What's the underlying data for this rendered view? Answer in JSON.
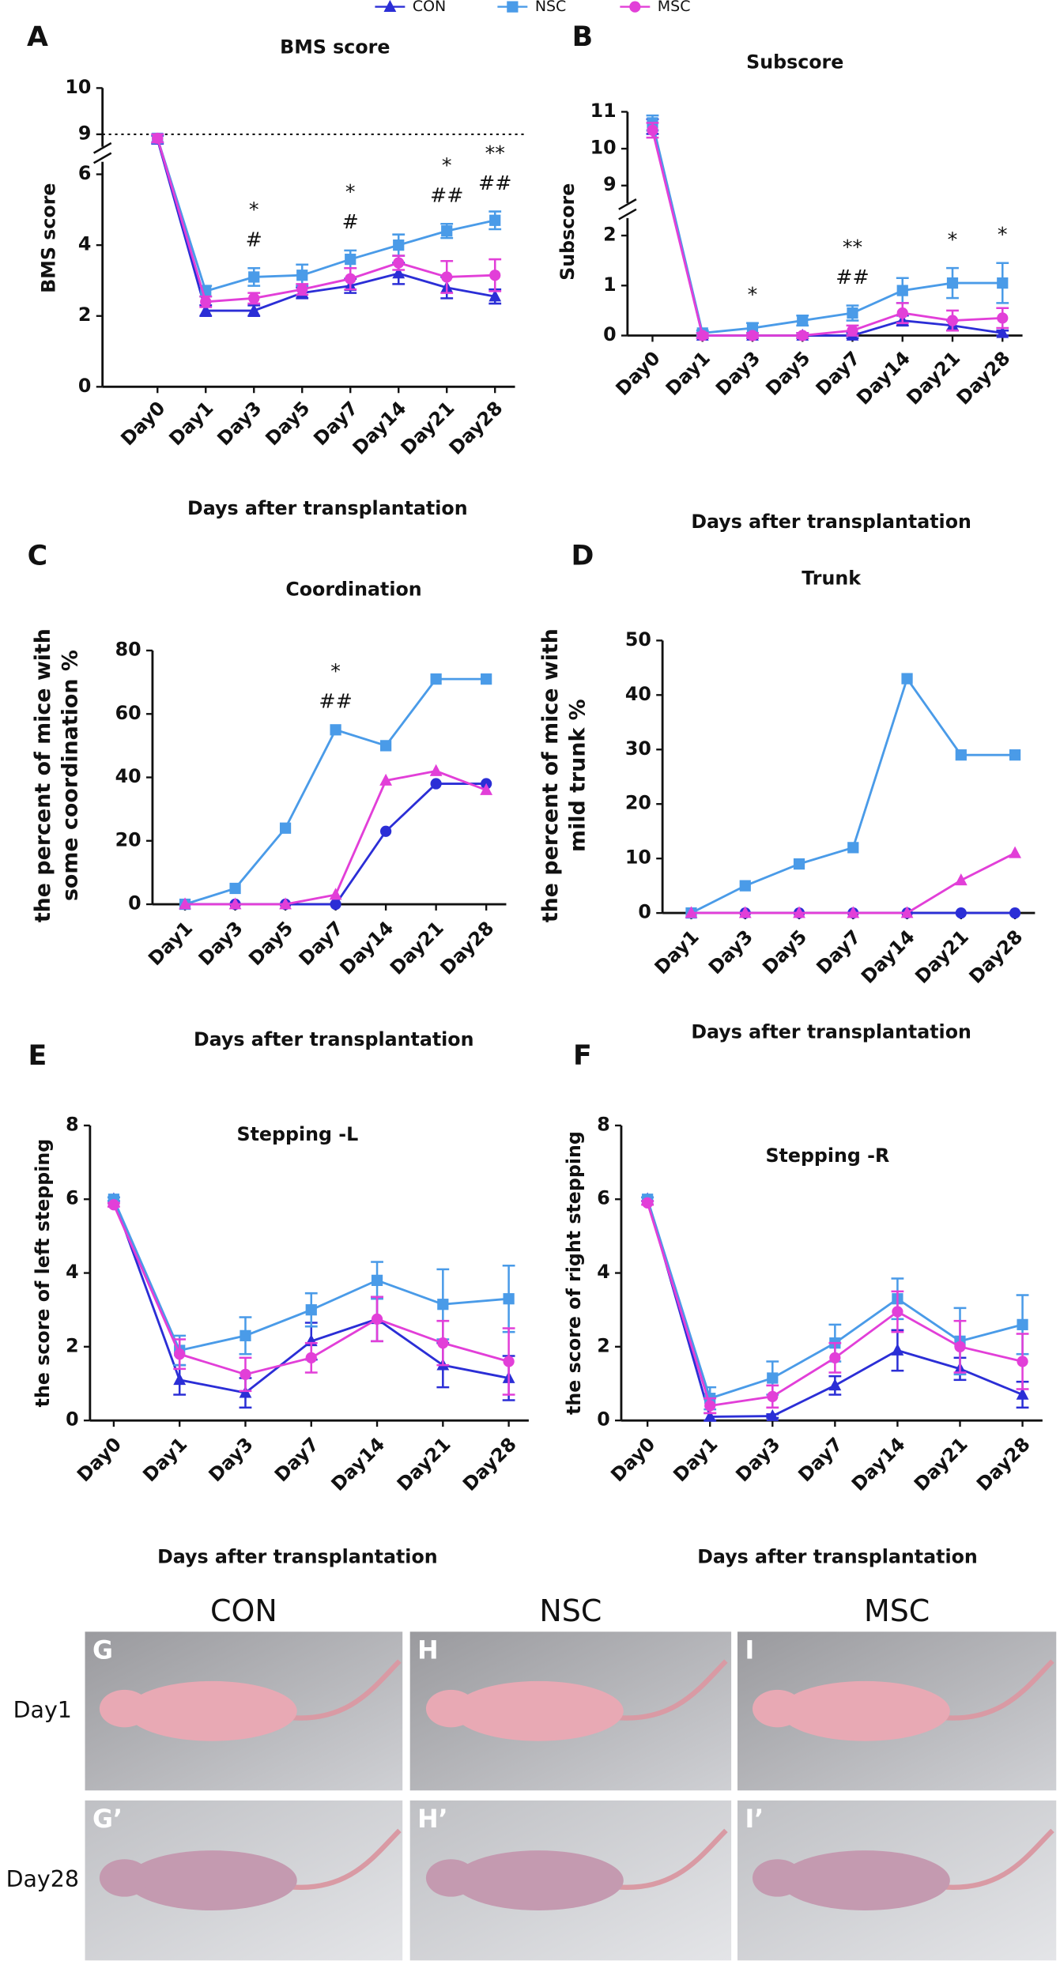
{
  "chart_data": [
    {
      "type": "line",
      "panel": "A",
      "title": "BMS score",
      "xlabel": "Days after transplantation",
      "ylabel": "BMS score",
      "legend": "top",
      "categories": [
        "Day0",
        "Day1",
        "Day3",
        "Day5",
        "Day7",
        "Day14",
        "Day21",
        "Day28"
      ],
      "ylim": [
        0,
        10
      ],
      "ybreak": [
        6,
        9
      ],
      "yticks": [
        0,
        2,
        4,
        6,
        9,
        10
      ],
      "reference_line": 9,
      "series": [
        {
          "name": "CON",
          "color": "#2b2ed6",
          "marker": "triangle",
          "values": [
            8.6,
            2.15,
            2.15,
            2.65,
            2.85,
            3.2,
            2.8,
            2.55
          ],
          "errors": [
            0.3,
            0.15,
            0.15,
            0.15,
            0.2,
            0.3,
            0.3,
            0.2
          ]
        },
        {
          "name": "NSC",
          "color": "#4a9be8",
          "marker": "square",
          "values": [
            8.7,
            2.7,
            3.1,
            3.15,
            3.6,
            4.0,
            4.4,
            4.7
          ],
          "errors": [
            0.3,
            0.15,
            0.25,
            0.3,
            0.25,
            0.3,
            0.2,
            0.25
          ]
        },
        {
          "name": "MSC",
          "color": "#e23fd8",
          "marker": "circle",
          "values": [
            8.7,
            2.4,
            2.5,
            2.75,
            3.05,
            3.5,
            3.1,
            3.15
          ],
          "errors": [
            0.3,
            0.15,
            0.15,
            0.15,
            0.3,
            0.2,
            0.45,
            0.45
          ]
        }
      ],
      "annotations": [
        {
          "x": "Day3",
          "lines": [
            "*",
            "#"
          ]
        },
        {
          "x": "Day7",
          "lines": [
            "*",
            "#"
          ]
        },
        {
          "x": "Day21",
          "lines": [
            "*",
            "##"
          ]
        },
        {
          "x": "Day28",
          "lines": [
            "**",
            "##"
          ]
        }
      ]
    },
    {
      "type": "line",
      "panel": "B",
      "title": "Subscore",
      "xlabel": "Days after transplantation",
      "ylabel": "Subscore",
      "categories": [
        "Day0",
        "Day1",
        "Day3",
        "Day5",
        "Day7",
        "Day14",
        "Day21",
        "Day28"
      ],
      "ylim": [
        0,
        11
      ],
      "ybreak": [
        2,
        9
      ],
      "yticks": [
        0,
        1,
        2,
        9,
        10,
        11
      ],
      "series": [
        {
          "name": "CON",
          "color": "#2b2ed6",
          "marker": "triangle",
          "values": [
            10.6,
            0,
            0,
            0,
            0,
            0.3,
            0.2,
            0.05
          ],
          "errors": [
            0.2,
            0.05,
            0.05,
            0.05,
            0.05,
            0.1,
            0.1,
            0.05
          ]
        },
        {
          "name": "NSC",
          "color": "#4a9be8",
          "marker": "square",
          "values": [
            10.7,
            0.05,
            0.15,
            0.3,
            0.45,
            0.9,
            1.05,
            1.05
          ],
          "errors": [
            0.2,
            0.05,
            0.1,
            0.1,
            0.15,
            0.25,
            0.3,
            0.4
          ]
        },
        {
          "name": "MSC",
          "color": "#e23fd8",
          "marker": "circle",
          "values": [
            10.5,
            0,
            0,
            0,
            0.1,
            0.45,
            0.3,
            0.35
          ],
          "errors": [
            0.2,
            0.05,
            0.05,
            0.05,
            0.1,
            0.2,
            0.2,
            0.2
          ]
        }
      ],
      "annotations": [
        {
          "x": "Day3",
          "lines": [
            "*"
          ]
        },
        {
          "x": "Day7",
          "lines": [
            "**",
            "##"
          ]
        },
        {
          "x": "Day21",
          "lines": [
            "*"
          ]
        },
        {
          "x": "Day28",
          "lines": [
            "*"
          ]
        }
      ]
    },
    {
      "type": "line",
      "panel": "C",
      "title": "Coordination",
      "xlabel": "Days after transplantation",
      "ylabel": [
        "the percent of mice with",
        "some coordination %"
      ],
      "categories": [
        "Day1",
        "Day3",
        "Day5",
        "Day7",
        "Day14",
        "Day21",
        "Day28"
      ],
      "ylim": [
        0,
        80
      ],
      "yticks": [
        0,
        20,
        40,
        60,
        80
      ],
      "series": [
        {
          "name": "CON",
          "color": "#2b2ed6",
          "marker": "circle",
          "values": [
            0,
            0,
            0,
            0,
            23,
            38,
            38
          ]
        },
        {
          "name": "NSC",
          "color": "#4a9be8",
          "marker": "square",
          "values": [
            0,
            5,
            24,
            55,
            50,
            71,
            71
          ]
        },
        {
          "name": "MSC",
          "color": "#e23fd8",
          "marker": "triangle",
          "values": [
            0,
            0,
            0,
            3,
            39,
            42,
            36
          ]
        }
      ],
      "annotations": [
        {
          "x": "Day7",
          "lines": [
            "*",
            "##"
          ]
        }
      ]
    },
    {
      "type": "line",
      "panel": "D",
      "title": "Trunk",
      "xlabel": "Days after transplantation",
      "ylabel": [
        "the percent of mice with",
        "mild trunk %"
      ],
      "categories": [
        "Day1",
        "Day3",
        "Day5",
        "Day7",
        "Day14",
        "Day21",
        "Day28"
      ],
      "ylim": [
        0,
        50
      ],
      "yticks": [
        0,
        10,
        20,
        30,
        40,
        50
      ],
      "series": [
        {
          "name": "CON",
          "color": "#2b2ed6",
          "marker": "circle",
          "values": [
            0,
            0,
            0,
            0,
            0,
            0,
            0
          ]
        },
        {
          "name": "NSC",
          "color": "#4a9be8",
          "marker": "square",
          "values": [
            0,
            5,
            9,
            12,
            43,
            29,
            29
          ]
        },
        {
          "name": "MSC",
          "color": "#e23fd8",
          "marker": "triangle",
          "values": [
            0,
            0,
            0,
            0,
            0,
            6,
            11
          ]
        }
      ]
    },
    {
      "type": "line",
      "panel": "E",
      "title": "Stepping -L",
      "xlabel": "Days after transplantation",
      "ylabel": "the score of left stepping",
      "categories": [
        "Day0",
        "Day1",
        "Day3",
        "Day7",
        "Day14",
        "Day21",
        "Day28"
      ],
      "ylim": [
        0,
        8
      ],
      "yticks": [
        0,
        2,
        4,
        6,
        8
      ],
      "series": [
        {
          "name": "CON",
          "color": "#2b2ed6",
          "marker": "triangle",
          "values": [
            6,
            1.1,
            0.75,
            2.15,
            2.75,
            1.5,
            1.15
          ],
          "errors": [
            0.05,
            0.4,
            0.4,
            0.5,
            0.6,
            0.6,
            0.6
          ]
        },
        {
          "name": "NSC",
          "color": "#4a9be8",
          "marker": "square",
          "values": [
            6,
            1.9,
            2.3,
            3.0,
            3.8,
            3.15,
            3.3
          ],
          "errors": [
            0.05,
            0.4,
            0.5,
            0.45,
            0.5,
            0.95,
            0.9
          ]
        },
        {
          "name": "MSC",
          "color": "#e23fd8",
          "marker": "circle",
          "values": [
            5.85,
            1.8,
            1.25,
            1.7,
            2.75,
            2.1,
            1.6
          ],
          "errors": [
            0.05,
            0.4,
            0.45,
            0.4,
            0.6,
            0.6,
            0.9
          ]
        }
      ]
    },
    {
      "type": "line",
      "panel": "F",
      "title": "Stepping -R",
      "xlabel": "Days after transplantation",
      "ylabel": "the score of right stepping",
      "categories": [
        "Day0",
        "Day1",
        "Day3",
        "Day7",
        "Day14",
        "Day21",
        "Day28"
      ],
      "ylim": [
        0,
        8
      ],
      "yticks": [
        0,
        2,
        4,
        6,
        8
      ],
      "series": [
        {
          "name": "CON",
          "color": "#2b2ed6",
          "marker": "triangle",
          "values": [
            6,
            0.1,
            0.12,
            0.95,
            1.9,
            1.4,
            0.7
          ],
          "errors": [
            0.05,
            0.1,
            0.05,
            0.25,
            0.55,
            0.3,
            0.35
          ]
        },
        {
          "name": "NSC",
          "color": "#4a9be8",
          "marker": "square",
          "values": [
            6,
            0.6,
            1.15,
            2.1,
            3.3,
            2.15,
            2.6
          ],
          "errors": [
            0.05,
            0.3,
            0.45,
            0.5,
            0.55,
            0.9,
            0.8
          ]
        },
        {
          "name": "MSC",
          "color": "#e23fd8",
          "marker": "circle",
          "values": [
            5.9,
            0.4,
            0.65,
            1.7,
            2.95,
            2.0,
            1.6
          ],
          "errors": [
            0.05,
            0.2,
            0.3,
            0.4,
            0.55,
            0.7,
            0.75
          ]
        }
      ]
    }
  ],
  "photos": {
    "columns": [
      "CON",
      "NSC",
      "MSC"
    ],
    "rows": [
      "Day1",
      "Day28"
    ],
    "panels": [
      [
        "G",
        "H",
        "I"
      ],
      [
        "G’",
        "H’",
        "I’"
      ]
    ]
  }
}
